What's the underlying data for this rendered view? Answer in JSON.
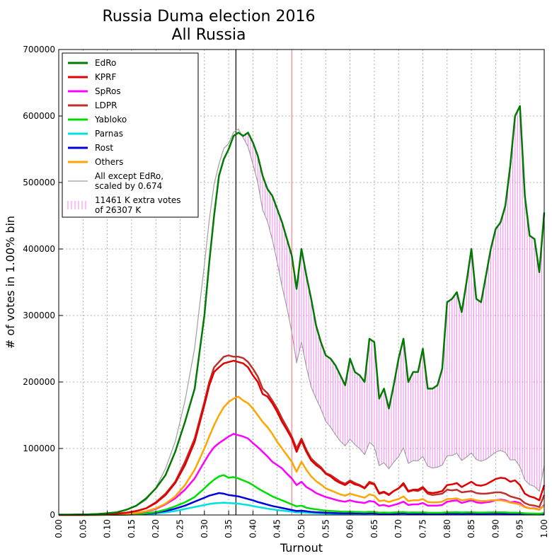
{
  "chart_data": {
    "type": "line",
    "title": "Russia Duma election 2016",
    "subtitle": "All Russia",
    "xlabel": "Turnout",
    "ylabel": "# of votes in 1.00% bin",
    "xlim": [
      0.0,
      1.0
    ],
    "ylim": [
      0,
      700000
    ],
    "xticks": [
      "0.00",
      "0.05",
      "0.10",
      "0.15",
      "0.20",
      "0.25",
      "0.30",
      "0.35",
      "0.40",
      "0.45",
      "0.50",
      "0.55",
      "0.60",
      "0.65",
      "0.70",
      "0.75",
      "0.80",
      "0.85",
      "0.90",
      "0.95",
      "1.00"
    ],
    "yticks": [
      "0",
      "100000",
      "200000",
      "300000",
      "400000",
      "500000",
      "600000",
      "700000"
    ],
    "grid": true,
    "legend_position": "top-left",
    "vlines": [
      {
        "x": 0.365,
        "color": "#000000"
      },
      {
        "x": 0.48,
        "color": "#ff7f7f"
      }
    ],
    "x": [
      0.0,
      0.02,
      0.04,
      0.06,
      0.08,
      0.1,
      0.12,
      0.14,
      0.16,
      0.18,
      0.2,
      0.22,
      0.24,
      0.26,
      0.28,
      0.3,
      0.31,
      0.32,
      0.33,
      0.34,
      0.35,
      0.36,
      0.37,
      0.38,
      0.39,
      0.4,
      0.41,
      0.42,
      0.43,
      0.44,
      0.45,
      0.46,
      0.47,
      0.48,
      0.49,
      0.5,
      0.51,
      0.52,
      0.53,
      0.54,
      0.55,
      0.56,
      0.57,
      0.58,
      0.59,
      0.6,
      0.61,
      0.62,
      0.63,
      0.64,
      0.65,
      0.66,
      0.67,
      0.68,
      0.69,
      0.7,
      0.71,
      0.72,
      0.73,
      0.74,
      0.75,
      0.76,
      0.77,
      0.78,
      0.79,
      0.8,
      0.81,
      0.82,
      0.83,
      0.84,
      0.85,
      0.86,
      0.87,
      0.88,
      0.89,
      0.9,
      0.91,
      0.92,
      0.93,
      0.94,
      0.95,
      0.96,
      0.97,
      0.98,
      0.99,
      1.0
    ],
    "series": [
      {
        "name": "EdRo",
        "color": "#007a00",
        "values": [
          500,
          500,
          800,
          1000,
          1500,
          2500,
          4000,
          8000,
          14000,
          25000,
          40000,
          60000,
          95000,
          140000,
          190000,
          300000,
          380000,
          450000,
          510000,
          535000,
          550000,
          570000,
          575000,
          570000,
          575000,
          560000,
          540000,
          510000,
          490000,
          480000,
          460000,
          440000,
          415000,
          390000,
          340000,
          400000,
          360000,
          325000,
          285000,
          260000,
          240000,
          235000,
          225000,
          210000,
          195000,
          235000,
          215000,
          210000,
          200000,
          265000,
          260000,
          175000,
          190000,
          160000,
          195000,
          235000,
          265000,
          200000,
          215000,
          215000,
          250000,
          190000,
          190000,
          195000,
          220000,
          320000,
          325000,
          335000,
          305000,
          350000,
          400000,
          325000,
          320000,
          360000,
          400000,
          430000,
          440000,
          465000,
          525000,
          600000,
          615000,
          480000,
          420000,
          415000,
          365000,
          455000
        ]
      },
      {
        "name": "KPRF",
        "color": "#e00000",
        "values": [
          200,
          200,
          300,
          400,
          600,
          1000,
          2000,
          3500,
          6000,
          10000,
          18000,
          30000,
          48000,
          75000,
          110000,
          165000,
          195000,
          215000,
          222000,
          228000,
          230000,
          232000,
          230000,
          228000,
          222000,
          210000,
          200000,
          182000,
          178000,
          168000,
          155000,
          140000,
          128000,
          115000,
          95000,
          112000,
          95000,
          82000,
          75000,
          70000,
          62000,
          58000,
          52000,
          48000,
          45000,
          50000,
          46000,
          44000,
          40000,
          48000,
          46000,
          32000,
          34000,
          30000,
          36000,
          40000,
          48000,
          36000,
          38000,
          38000,
          42000,
          34000,
          33000,
          34000,
          36000,
          45000,
          46000,
          48000,
          42000,
          46000,
          50000,
          45000,
          44000,
          46000,
          50000,
          54000,
          56000,
          55000,
          50000,
          52000,
          45000,
          32000,
          28000,
          26000,
          22000,
          45000
        ]
      },
      {
        "name": "SpRos",
        "color": "#ff00ff",
        "values": [
          100,
          100,
          150,
          200,
          300,
          500,
          800,
          1500,
          3000,
          5000,
          9000,
          16000,
          25000,
          38000,
          55000,
          80000,
          92000,
          102000,
          108000,
          113000,
          118000,
          122000,
          120000,
          118000,
          115000,
          108000,
          102000,
          95000,
          88000,
          80000,
          75000,
          70000,
          62000,
          55000,
          45000,
          50000,
          42000,
          38000,
          33000,
          30000,
          27000,
          25000,
          23000,
          21000,
          20000,
          22000,
          20000,
          19000,
          18000,
          21000,
          20000,
          14000,
          15000,
          13000,
          15000,
          17000,
          20000,
          15000,
          16000,
          16000,
          18000,
          14000,
          14000,
          14000,
          15000,
          20000,
          21000,
          22000,
          18000,
          20000,
          22000,
          19000,
          18000,
          19000,
          20000,
          22000,
          23000,
          22000,
          19000,
          20000,
          18000,
          12000,
          10000,
          10000,
          8000,
          15000
        ]
      },
      {
        "name": "LDPR",
        "color": "#c0302a",
        "values": [
          200,
          200,
          300,
          400,
          600,
          1000,
          2000,
          3500,
          6000,
          10000,
          19000,
          32000,
          50000,
          80000,
          115000,
          170000,
          200000,
          222000,
          230000,
          238000,
          240000,
          238000,
          238000,
          236000,
          230000,
          220000,
          208000,
          190000,
          183000,
          172000,
          160000,
          145000,
          132000,
          118000,
          100000,
          115000,
          98000,
          85000,
          78000,
          72000,
          63000,
          60000,
          55000,
          50000,
          47000,
          52000,
          48000,
          45000,
          41000,
          50000,
          47000,
          33000,
          35000,
          31000,
          36000,
          40000,
          46000,
          35000,
          37000,
          36000,
          40000,
          32000,
          30000,
          31000,
          32000,
          38000,
          37000,
          38000,
          34000,
          35000,
          36000,
          33000,
          32000,
          32000,
          33000,
          34000,
          34000,
          32000,
          28000,
          26000,
          24000,
          18000,
          15000,
          14000,
          12000,
          30000
        ]
      },
      {
        "name": "Yabloko",
        "color": "#00dd00",
        "values": [
          50,
          50,
          80,
          100,
          150,
          250,
          400,
          800,
          1500,
          2500,
          4500,
          8000,
          13000,
          19000,
          27000,
          40000,
          47000,
          53000,
          58000,
          60000,
          56000,
          57000,
          55000,
          52000,
          49000,
          45000,
          40000,
          36000,
          32000,
          28000,
          25000,
          22000,
          19000,
          16000,
          13000,
          14000,
          11000,
          9500,
          8500,
          7500,
          6500,
          6000,
          5500,
          5000,
          4800,
          5000,
          4700,
          4500,
          4200,
          4800,
          4600,
          3500,
          3700,
          3300,
          3700,
          4000,
          4500,
          3600,
          3800,
          3700,
          4000,
          3400,
          3300,
          3300,
          3400,
          4000,
          4000,
          4100,
          3700,
          3900,
          4000,
          3700,
          3600,
          3700,
          3800,
          3900,
          3900,
          3800,
          3500,
          3500,
          3200,
          2500,
          2200,
          2100,
          1900,
          3000
        ]
      },
      {
        "name": "Parnas",
        "color": "#00e0e0",
        "values": [
          20,
          20,
          30,
          50,
          80,
          120,
          200,
          400,
          700,
          1200,
          2200,
          3800,
          6000,
          9000,
          12000,
          15000,
          16500,
          17500,
          18000,
          18500,
          18000,
          17500,
          17000,
          16000,
          15000,
          13500,
          12000,
          10800,
          9500,
          8500,
          7500,
          6500,
          5800,
          5000,
          4000,
          4200,
          3500,
          3000,
          2700,
          2400,
          2100,
          2000,
          1800,
          1700,
          1600,
          1700,
          1600,
          1500,
          1400,
          1600,
          1550,
          1200,
          1250,
          1100,
          1250,
          1350,
          1500,
          1200,
          1250,
          1250,
          1350,
          1150,
          1100,
          1100,
          1150,
          1350,
          1350,
          1400,
          1250,
          1300,
          1350,
          1250,
          1200,
          1250,
          1300,
          1300,
          1300,
          1250,
          1150,
          1150,
          1050,
          850,
          750,
          700,
          650,
          1000
        ]
      },
      {
        "name": "Rost",
        "color": "#0000dd",
        "values": [
          30,
          30,
          50,
          80,
          120,
          200,
          350,
          600,
          1100,
          2000,
          3500,
          6000,
          9500,
          14000,
          20000,
          26000,
          29000,
          31000,
          33000,
          32000,
          30000,
          29000,
          28000,
          26000,
          24000,
          22000,
          19500,
          17500,
          15500,
          13500,
          12000,
          10500,
          9000,
          7500,
          6000,
          6500,
          5500,
          4700,
          4200,
          3800,
          3300,
          3100,
          2800,
          2600,
          2400,
          2600,
          2400,
          2300,
          2100,
          2400,
          2300,
          1800,
          1900,
          1700,
          1900,
          2000,
          2300,
          1800,
          1900,
          1900,
          2000,
          1700,
          1600,
          1700,
          1700,
          2000,
          2000,
          2100,
          1900,
          2000,
          2100,
          1900,
          1800,
          1900,
          2000,
          2000,
          2000,
          1900,
          1700,
          1700,
          1500,
          1200,
          1000,
          1000,
          900,
          1500
        ]
      },
      {
        "name": "Others",
        "color": "#ffa500",
        "values": [
          100,
          100,
          150,
          200,
          300,
          500,
          1000,
          1800,
          3200,
          5500,
          10000,
          17000,
          28000,
          45000,
          68000,
          100000,
          118000,
          135000,
          150000,
          162000,
          170000,
          175000,
          178000,
          172000,
          168000,
          160000,
          150000,
          140000,
          132000,
          122000,
          110000,
          100000,
          90000,
          80000,
          65000,
          80000,
          68000,
          58000,
          51000,
          46000,
          40000,
          37000,
          34000,
          31000,
          29000,
          32000,
          30000,
          28000,
          26000,
          31000,
          29000,
          21000,
          22000,
          19500,
          22000,
          24000,
          28000,
          21000,
          22000,
          22000,
          24000,
          19500,
          19000,
          19000,
          20000,
          24000,
          24000,
          25000,
          22000,
          23000,
          24000,
          22000,
          21000,
          21000,
          22000,
          22000,
          22000,
          21000,
          18500,
          17500,
          16000,
          11500,
          10000,
          9500,
          8000,
          14000
        ]
      },
      {
        "name": "All except EdRo,\nscaled by 0.674",
        "color": "#a0a0a0",
        "values": [
          470,
          470,
          710,
          950,
          1430,
          2370,
          4070,
          7260,
          13270,
          22480,
          40930,
          69930,
          110310,
          171690,
          251150,
          376540,
          443550,
          497260,
          527920,
          551170,
          558600,
          575500,
          580570,
          567090,
          553820,
          527580,
          499960,
          458860,
          441450,
          414210,
          380450,
          343380,
          311770,
          275170,
          228870,
          260030,
          222810,
          192550,
          175090,
          159720,
          140930,
          132050,
          120930,
          110950,
          104000,
          113960,
          105880,
          99700,
          90830,
          109360,
          103050,
          74400,
          78600,
          69320,
          79480,
          87760,
          101300,
          77660,
          81790,
          81380,
          88060,
          73480,
          70690,
          71960,
          75080,
          89160,
          89480,
          93010,
          81870,
          87140,
          93240,
          83550,
          80910,
          83620,
          88780,
          94530,
          97140,
          94050,
          82770,
          83070,
          72750,
          52540,
          45630,
          42830,
          35740,
          74250
        ]
      }
    ],
    "legend": [
      {
        "label": "EdRo",
        "color": "#007a00"
      },
      {
        "label": "KPRF",
        "color": "#e00000"
      },
      {
        "label": "SpRos",
        "color": "#ff00ff"
      },
      {
        "label": "LDPR",
        "color": "#c0302a"
      },
      {
        "label": "Yabloko",
        "color": "#00dd00"
      },
      {
        "label": "Parnas",
        "color": "#00e0e0"
      },
      {
        "label": "Rost",
        "color": "#0000dd"
      },
      {
        "label": "Others",
        "color": "#ffa500"
      },
      {
        "label": "All except EdRo,\nscaled by 0.674",
        "color": "#a0a0a0"
      },
      {
        "label": "11461 K extra votes\n of 26307 K",
        "color": "#ff7fff"
      }
    ]
  }
}
